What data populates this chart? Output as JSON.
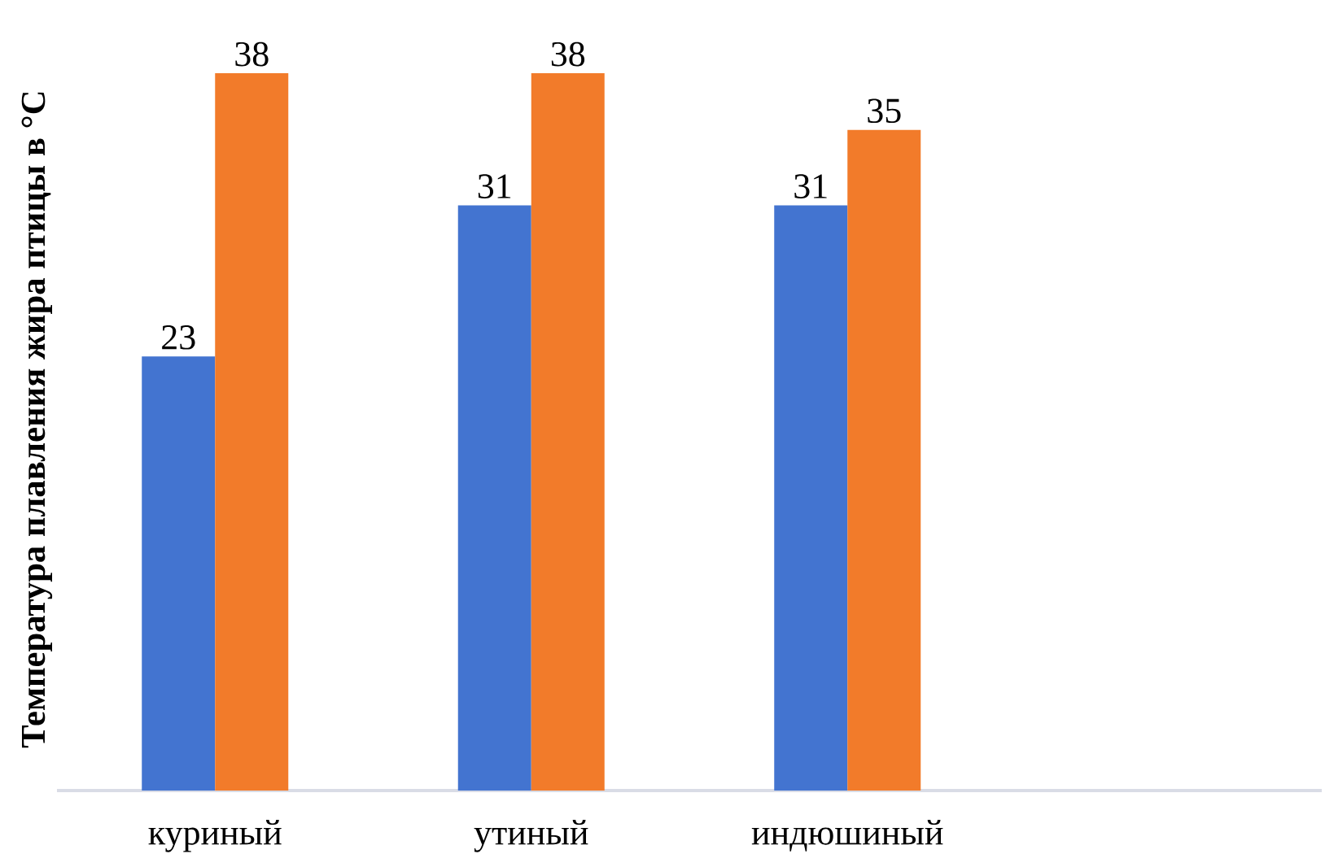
{
  "chart_data": {
    "type": "bar",
    "ylabel": "Температура плавления жира птицы в °С",
    "categories": [
      "куриный",
      "утиный",
      "индюшиный",
      null
    ],
    "series": [
      {
        "color": "#4374d0",
        "values": [
          23,
          31,
          31,
          null
        ]
      },
      {
        "color": "#f27b2a",
        "values": [
          38,
          38,
          35,
          null
        ]
      }
    ],
    "data_labels": true
  }
}
